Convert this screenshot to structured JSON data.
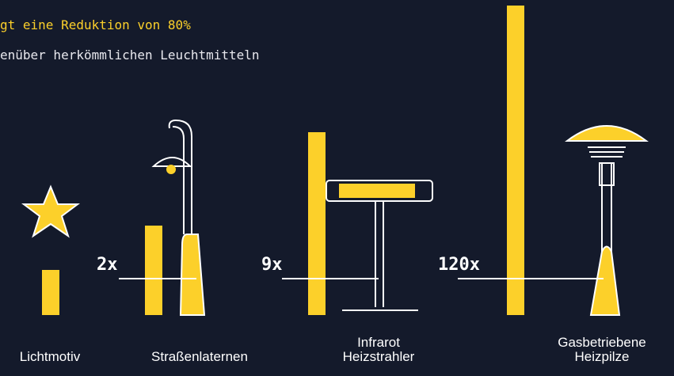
{
  "chart_data": {
    "type": "bar",
    "title": "gt eine Reduktion von 80%",
    "subtitle": "enüber herkömmlichen Leuchtmitteln",
    "categories": [
      "Lichtmotiv",
      "Straßenlaternen",
      "Infrarot Heizstrahler",
      "Gasbetriebene Heizpilze"
    ],
    "values": [
      57,
      113,
      231,
      391
    ],
    "annotations": [
      "2x",
      "9x",
      "120x"
    ],
    "color": "#fcd02a",
    "ylim": [
      0,
      400
    ]
  }
}
